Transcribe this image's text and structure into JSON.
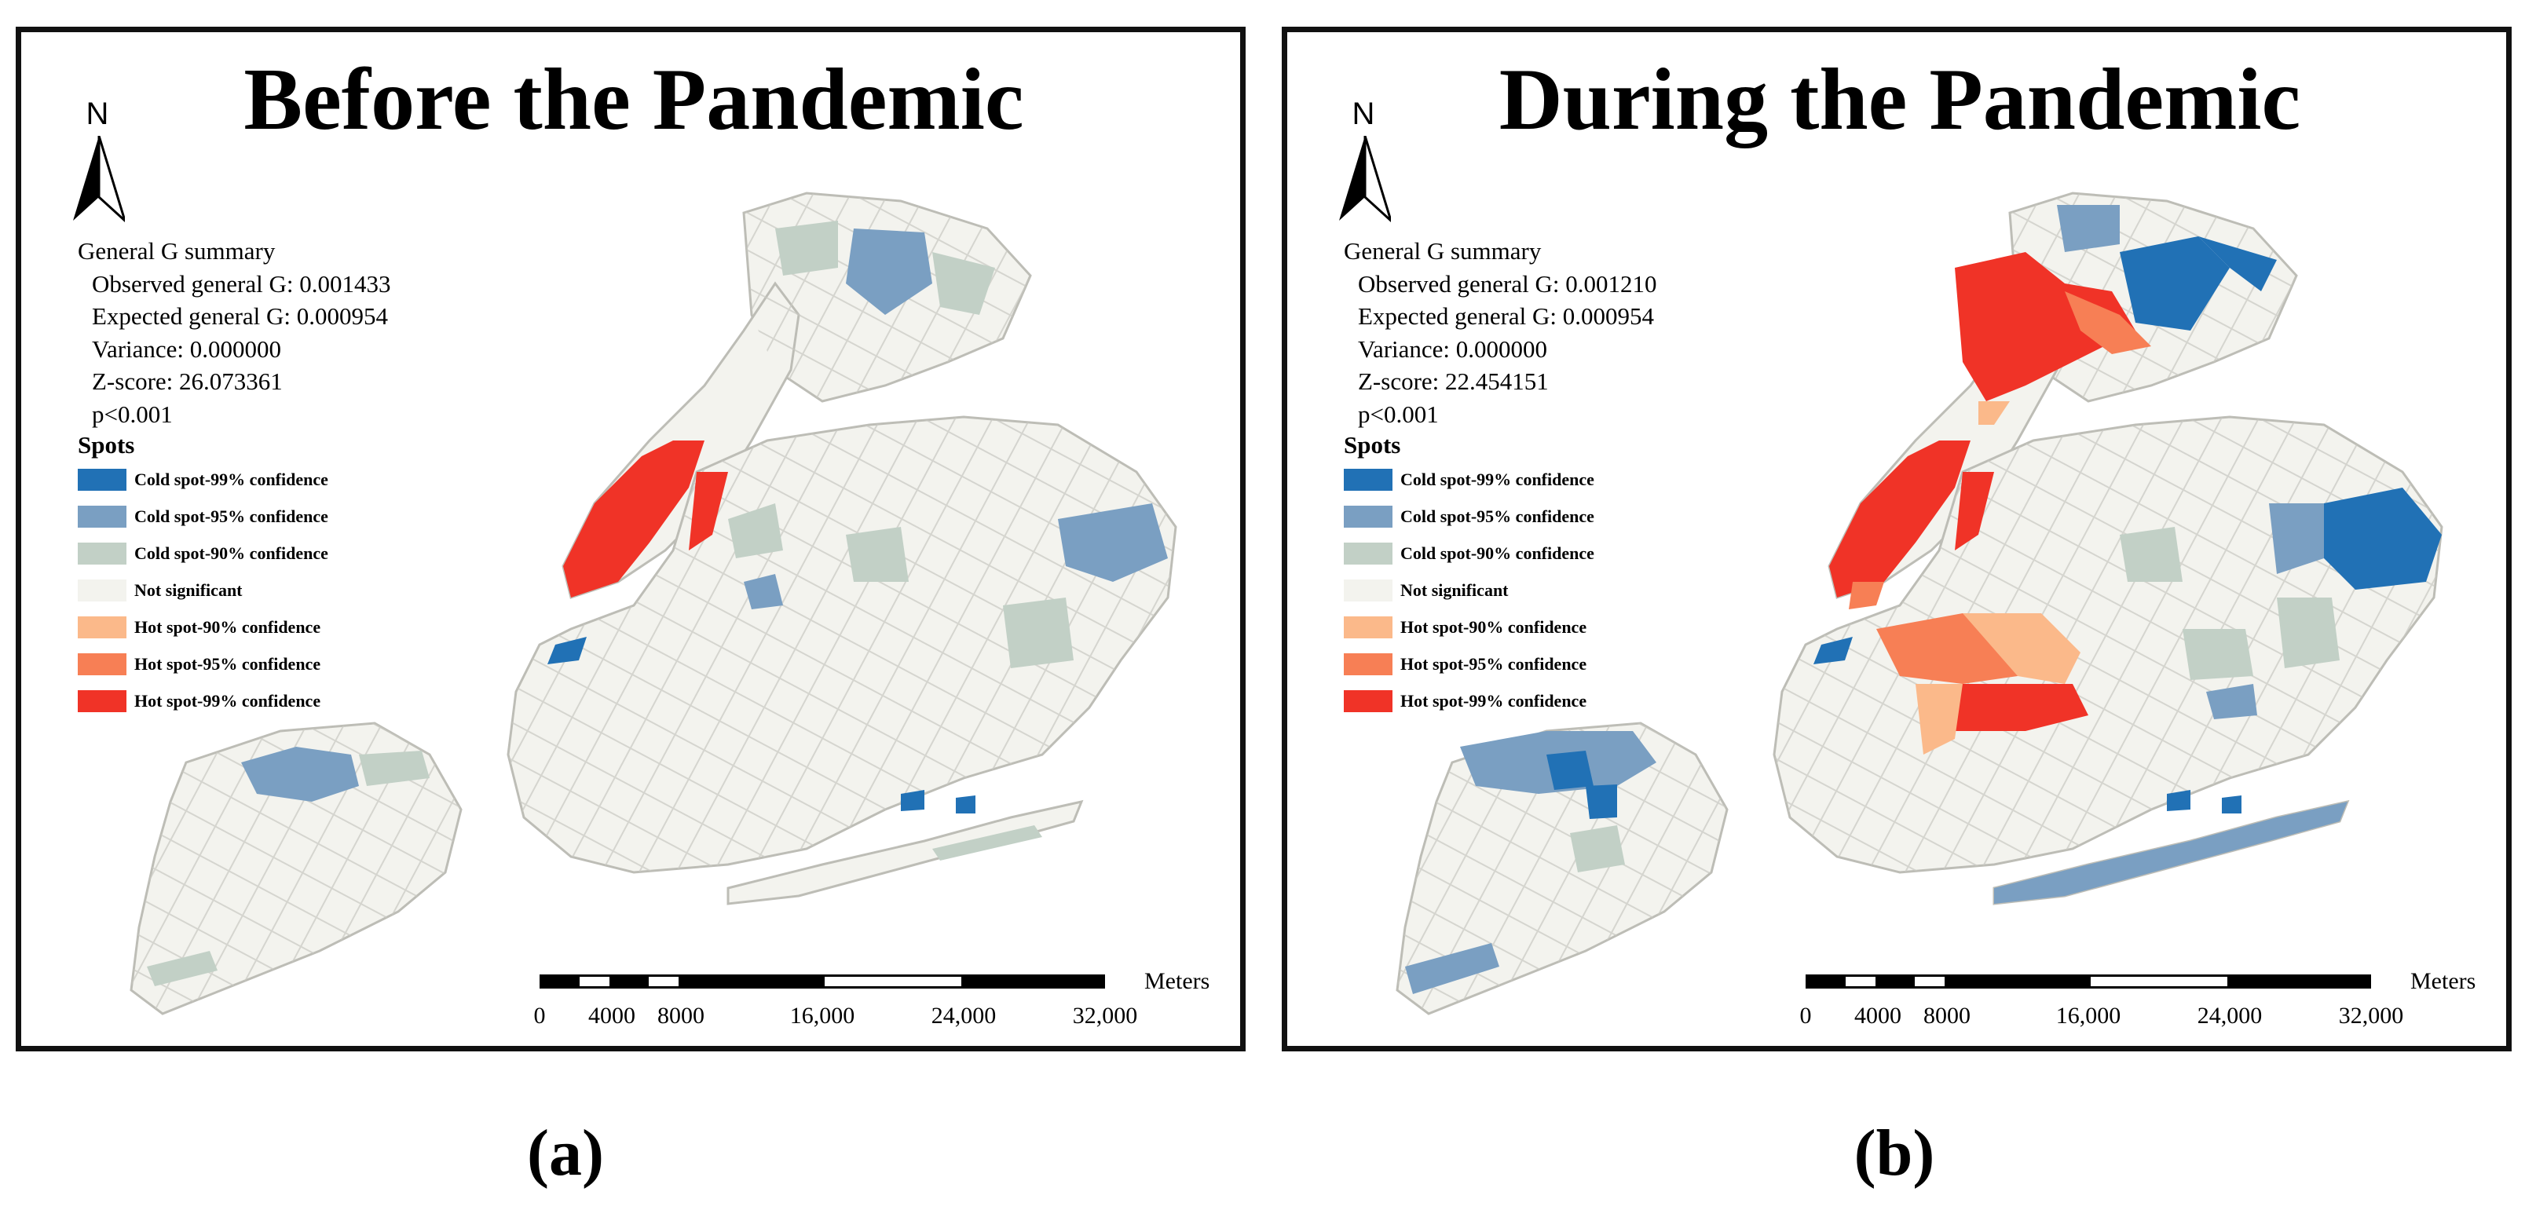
{
  "panels": [
    {
      "id": "a",
      "title": "Before the Pandemic",
      "north_label": "N",
      "summary": {
        "heading": "General G summary",
        "observed": "Observed general G: 0.001433",
        "expected": "Expected general G: 0.000954",
        "variance": "Variance: 0.000000",
        "zscore": "Z-score: 26.073361",
        "pvalue": "p<0.001"
      },
      "spots_title": "Spots",
      "scale": {
        "units": "Meters",
        "ticks": [
          "0",
          "4000",
          "8000",
          "16,000",
          "24,000",
          "32,000"
        ]
      },
      "caption": "(a)"
    },
    {
      "id": "b",
      "title": "During the Pandemic",
      "north_label": "N",
      "summary": {
        "heading": "General G summary",
        "observed": "Observed general G: 0.001210",
        "expected": "Expected general G: 0.000954",
        "variance": "Variance: 0.000000",
        "zscore": "Z-score: 22.454151",
        "pvalue": "p<0.001"
      },
      "spots_title": "Spots",
      "scale": {
        "units": "Meters",
        "ticks": [
          "0",
          "4000",
          "8000",
          "16,000",
          "24,000",
          "32,000"
        ]
      },
      "caption": "(b)"
    }
  ],
  "legend": [
    {
      "label": "Cold spot-99% confidence",
      "color": "#2171b5"
    },
    {
      "label": "Cold spot-95% confidence",
      "color": "#7a9fc2"
    },
    {
      "label": "Cold spot-90% confidence",
      "color": "#c2d0c6"
    },
    {
      "label": "Not significant",
      "color": "#f3f3ee"
    },
    {
      "label": "Hot spot-90% confidence",
      "color": "#fbb98a"
    },
    {
      "label": "Hot spot-95% confidence",
      "color": "#f77f55"
    },
    {
      "label": "Hot spot-99% confidence",
      "color": "#f03327"
    }
  ],
  "land_color": "#f3f3ee",
  "boundary_color": "#bdbdb6"
}
